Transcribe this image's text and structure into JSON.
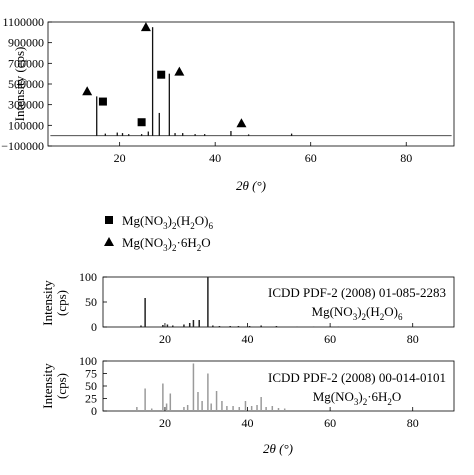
{
  "chart_data": [
    {
      "type": "line",
      "panel": "experimental-xrd",
      "ylabel": "Intensity (cps)",
      "xlabel": "2θ (°)",
      "xlim": [
        5,
        90
      ],
      "ylim": [
        -100000,
        1100000
      ],
      "x_ticks": [
        20,
        40,
        60,
        80
      ],
      "y_ticks": [
        -100000,
        100000,
        300000,
        500000,
        700000,
        900000,
        1100000
      ],
      "y_tick_labels": [
        "−100000",
        "100000",
        "300000",
        "500000",
        "700000",
        "900000",
        "1100000"
      ],
      "grid": false,
      "baseline": 0,
      "color": "#111111",
      "peaks": [
        {
          "x": 15.2,
          "y": 380000
        },
        {
          "x": 17.0,
          "y": 20000
        },
        {
          "x": 19.5,
          "y": 30000
        },
        {
          "x": 20.6,
          "y": 25000
        },
        {
          "x": 21.9,
          "y": 15000
        },
        {
          "x": 24.6,
          "y": 15000
        },
        {
          "x": 26.0,
          "y": 40000
        },
        {
          "x": 26.9,
          "y": 1050000
        },
        {
          "x": 28.3,
          "y": 220000
        },
        {
          "x": 30.4,
          "y": 600000
        },
        {
          "x": 31.6,
          "y": 25000
        },
        {
          "x": 33.2,
          "y": 25000
        },
        {
          "x": 35.8,
          "y": 15000
        },
        {
          "x": 37.8,
          "y": 15000
        },
        {
          "x": 43.3,
          "y": 45000
        },
        {
          "x": 47.0,
          "y": 12000
        },
        {
          "x": 56.0,
          "y": 20000
        }
      ],
      "markers": [
        {
          "shape": "triangle",
          "x": 13.2,
          "y": 430000
        },
        {
          "shape": "square",
          "x": 16.5,
          "y": 330000
        },
        {
          "shape": "square",
          "x": 24.6,
          "y": 130000
        },
        {
          "shape": "triangle",
          "x": 25.5,
          "y": 1050000
        },
        {
          "shape": "square",
          "x": 28.7,
          "y": 590000
        },
        {
          "shape": "triangle",
          "x": 32.5,
          "y": 620000
        },
        {
          "shape": "triangle",
          "x": 45.5,
          "y": 120000
        }
      ]
    },
    {
      "type": "bar",
      "panel": "reference-pattern-1",
      "ylabel": "Intensity (cps)",
      "xlim": [
        5,
        90
      ],
      "ylim": [
        0,
        100
      ],
      "x_ticks": [
        20,
        40,
        60,
        80
      ],
      "y_ticks": [
        0,
        50,
        100
      ],
      "color": "#222222",
      "annotation_line1": "ICDD PDF-2 (2008) 01-085-2283",
      "annotation_formula_main": "Mg(NO",
      "annotation_formula_sub1": "3",
      "annotation_formula_mid": ")",
      "annotation_formula_sub2": "2",
      "annotation_formula_mid2": "(H",
      "annotation_formula_sub3": "2",
      "annotation_formula_end": "O)",
      "annotation_formula_sub4": "6",
      "x": [
        14.2,
        15.2,
        19.5,
        20.6,
        21.9,
        24.6,
        26.0,
        26.9,
        28.3,
        30.4,
        31.6,
        33.2,
        35.8,
        37.8,
        40.5,
        43.3,
        47.0,
        52.0,
        56.0,
        62.0
      ],
      "values": [
        3,
        58,
        4,
        5,
        3,
        5,
        8,
        14,
        14,
        100,
        3,
        2,
        2,
        2,
        2,
        3,
        2,
        1,
        1,
        1
      ]
    },
    {
      "type": "bar",
      "panel": "reference-pattern-2",
      "ylabel": "Intensity (cps)",
      "xlim": [
        5,
        90
      ],
      "ylim": [
        0,
        100
      ],
      "x_ticks": [
        20,
        40,
        60,
        80
      ],
      "y_ticks": [
        0,
        25,
        50,
        75,
        100
      ],
      "color": "#9a9a9a",
      "annotation_line1": "ICDD PDF-2 (2008) 00-014-0101",
      "annotation_formula_main": "Mg(NO",
      "annotation_formula_sub1": "3",
      "annotation_formula_mid": ")",
      "annotation_formula_sub2": "2",
      "annotation_formula_mid2": "·6H",
      "annotation_formula_sub3": "2",
      "annotation_formula_end": "O",
      "x": [
        13.2,
        15.2,
        16.8,
        19.5,
        20.4,
        21.3,
        24.6,
        25.5,
        26.9,
        28.0,
        29.0,
        30.4,
        31.2,
        32.5,
        33.8,
        35.0,
        36.5,
        38.0,
        39.5,
        41.0,
        42.3,
        43.3,
        44.5,
        46.0,
        47.5,
        49.0
      ],
      "values": [
        8,
        45,
        5,
        55,
        15,
        35,
        8,
        12,
        95,
        38,
        20,
        75,
        15,
        40,
        20,
        10,
        10,
        8,
        20,
        10,
        12,
        28,
        8,
        10,
        6,
        5
      ]
    }
  ],
  "legend": {
    "square_label_main": "Mg(NO",
    "square_sub1": "3",
    "square_mid": ")",
    "square_sub2": "2",
    "square_mid2": "(H",
    "square_sub3": "2",
    "square_end": "O)",
    "square_sub4": "6",
    "triangle_label_main": "Mg(NO",
    "triangle_sub1": "3",
    "triangle_mid": ")",
    "triangle_sub2": "2",
    "triangle_mid2": "·6H",
    "triangle_sub3": "2",
    "triangle_end": "O"
  },
  "x_tick_labels": [
    "20",
    "40",
    "60",
    "80"
  ]
}
